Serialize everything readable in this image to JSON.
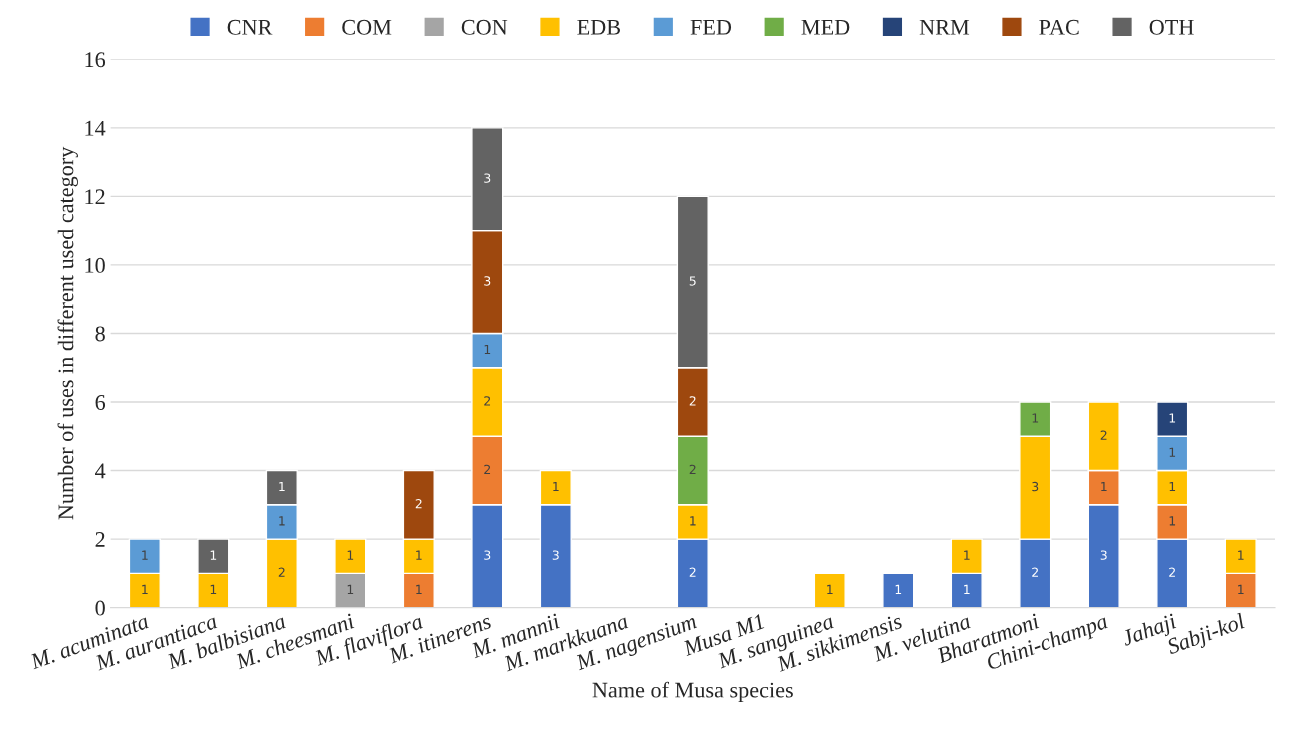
{
  "chart_data": {
    "type": "bar",
    "stacked": true,
    "xlabel": "Name of Musa species",
    "ylabel": "Number of uses in different used category",
    "categories": [
      "M. acuminata",
      "M. aurantiaca",
      "M. balbisiana",
      "M. cheesmani",
      "M. flaviflora",
      "M. itinerens",
      "M. mannii",
      "M. markkuana",
      "M. nagensium",
      "Musa M1",
      "M. sanguinea",
      "M. sikkimensis",
      "M. velutina",
      "Bharatmoni",
      "Chini-champa",
      "Jahaji",
      "Sabji-kol"
    ],
    "series": [
      {
        "name": "CNR",
        "color": "#4472c4",
        "values": [
          null,
          null,
          null,
          null,
          null,
          3,
          3,
          null,
          2,
          null,
          null,
          1,
          1,
          2,
          3,
          2,
          null
        ]
      },
      {
        "name": "COM",
        "color": "#ed7d31",
        "values": [
          null,
          null,
          null,
          null,
          1,
          2,
          null,
          null,
          null,
          null,
          null,
          null,
          null,
          null,
          1,
          1,
          1
        ]
      },
      {
        "name": "CON",
        "color": "#a5a5a5",
        "values": [
          null,
          null,
          null,
          1,
          null,
          null,
          null,
          null,
          null,
          null,
          null,
          null,
          null,
          null,
          null,
          null,
          null
        ]
      },
      {
        "name": "EDB",
        "color": "#ffc000",
        "values": [
          1,
          1,
          2,
          1,
          1,
          2,
          1,
          null,
          1,
          null,
          1,
          null,
          1,
          3,
          2,
          1,
          1
        ]
      },
      {
        "name": "FED",
        "color": "#5b9bd5",
        "values": [
          1,
          null,
          1,
          null,
          null,
          1,
          null,
          null,
          null,
          null,
          null,
          null,
          null,
          null,
          null,
          1,
          null
        ]
      },
      {
        "name": "MED",
        "color": "#70ad47",
        "values": [
          null,
          null,
          null,
          null,
          null,
          null,
          null,
          null,
          2,
          null,
          null,
          null,
          null,
          1,
          null,
          null,
          null
        ]
      },
      {
        "name": "NRM",
        "color": "#264478",
        "values": [
          null,
          null,
          null,
          null,
          null,
          null,
          null,
          null,
          null,
          null,
          null,
          null,
          null,
          null,
          null,
          1,
          null
        ]
      },
      {
        "name": "PAC",
        "color": "#9e480e",
        "values": [
          null,
          null,
          null,
          null,
          2,
          3,
          null,
          null,
          2,
          null,
          null,
          null,
          null,
          null,
          null,
          null,
          null
        ]
      },
      {
        "name": "OTH",
        "color": "#636363",
        "values": [
          null,
          1,
          1,
          null,
          null,
          3,
          null,
          null,
          5,
          null,
          null,
          null,
          null,
          null,
          null,
          null,
          null
        ]
      }
    ],
    "ylim": [
      0,
      16
    ],
    "yticks": [
      0,
      2,
      4,
      6,
      8,
      10,
      12,
      14,
      16
    ],
    "grid": "y",
    "legend": "top",
    "data_labels": true
  }
}
